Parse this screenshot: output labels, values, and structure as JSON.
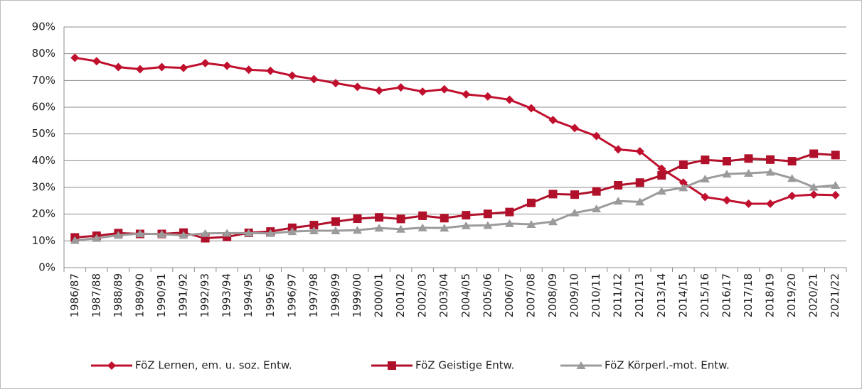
{
  "chart_data": {
    "type": "line",
    "categories": [
      "1986/87",
      "1987/88",
      "1988/89",
      "1989/90",
      "1990/91",
      "1991/92",
      "1992/93",
      "1993/94",
      "1994/95",
      "1995/96",
      "1996/97",
      "1997/98",
      "1998/99",
      "1999/00",
      "2000/01",
      "2001/02",
      "2002/03",
      "2003/04",
      "2004/05",
      "2005/06",
      "2006/07",
      "2007/08",
      "2008/09",
      "2009/10",
      "2010/11",
      "2011/12",
      "2012/13",
      "2013/14",
      "2014/15",
      "2015/16",
      "2016/17",
      "2017/18",
      "2018/19",
      "2019/20",
      "2020/21",
      "2021/22"
    ],
    "series": [
      {
        "name": "FöZ Lernen, em. u. soz. Entw.",
        "color": "#c0102e",
        "marker": "diamond",
        "values": [
          78.5,
          77.2,
          75,
          74.2,
          75,
          74.7,
          76.5,
          75.5,
          74,
          73.6,
          71.8,
          70.5,
          69,
          67.6,
          66.2,
          67.4,
          65.8,
          66.7,
          64.8,
          64,
          62.8,
          59.6,
          55.2,
          52.2,
          49.2,
          44.2,
          43.5,
          37,
          31.8,
          26.4,
          25.2,
          23.9,
          23.9,
          26.8,
          27.3,
          27.1
        ]
      },
      {
        "name": "FöZ Geistige Entw.",
        "color": "#b0102a",
        "marker": "square",
        "values": [
          11.3,
          11.9,
          12.9,
          12.6,
          12.6,
          13.1,
          11,
          11.5,
          13,
          13.5,
          14.9,
          15.9,
          17.2,
          18.3,
          18.8,
          18.2,
          19.4,
          18.5,
          19.6,
          20.1,
          20.8,
          24.2,
          27.5,
          27.3,
          28.5,
          30.8,
          31.8,
          34.5,
          38.5,
          40.3,
          39.8,
          40.8,
          40.4,
          39.8,
          42.6,
          42.1
        ]
      },
      {
        "name": "FöZ Körperl.-mot. Entw.",
        "color": "#9b9b9b",
        "marker": "triangle",
        "values": [
          10.2,
          11,
          12.1,
          12.7,
          12.5,
          12.1,
          12.8,
          12.9,
          12.9,
          12.8,
          13.5,
          13.8,
          13.8,
          14,
          14.8,
          14.4,
          14.9,
          14.8,
          15.7,
          15.8,
          16.5,
          16.2,
          17.2,
          20.5,
          22,
          24.9,
          24.6,
          28.6,
          29.9,
          33.2,
          35,
          35.3,
          35.7,
          33.4,
          30.1,
          30.8
        ]
      }
    ],
    "ylim": [
      0,
      90
    ],
    "yticks": [
      {
        "value": 0,
        "label": "0%"
      },
      {
        "value": 10,
        "label": "10%"
      },
      {
        "value": 20,
        "label": "20%"
      },
      {
        "value": 30,
        "label": "30%"
      },
      {
        "value": 40,
        "label": "40%"
      },
      {
        "value": 50,
        "label": "50%"
      },
      {
        "value": 60,
        "label": "60%"
      },
      {
        "value": 70,
        "label": "70%"
      },
      {
        "value": 80,
        "label": "80%"
      },
      {
        "value": 90,
        "label": "90%"
      }
    ],
    "grid": true,
    "legend": "bottom"
  }
}
